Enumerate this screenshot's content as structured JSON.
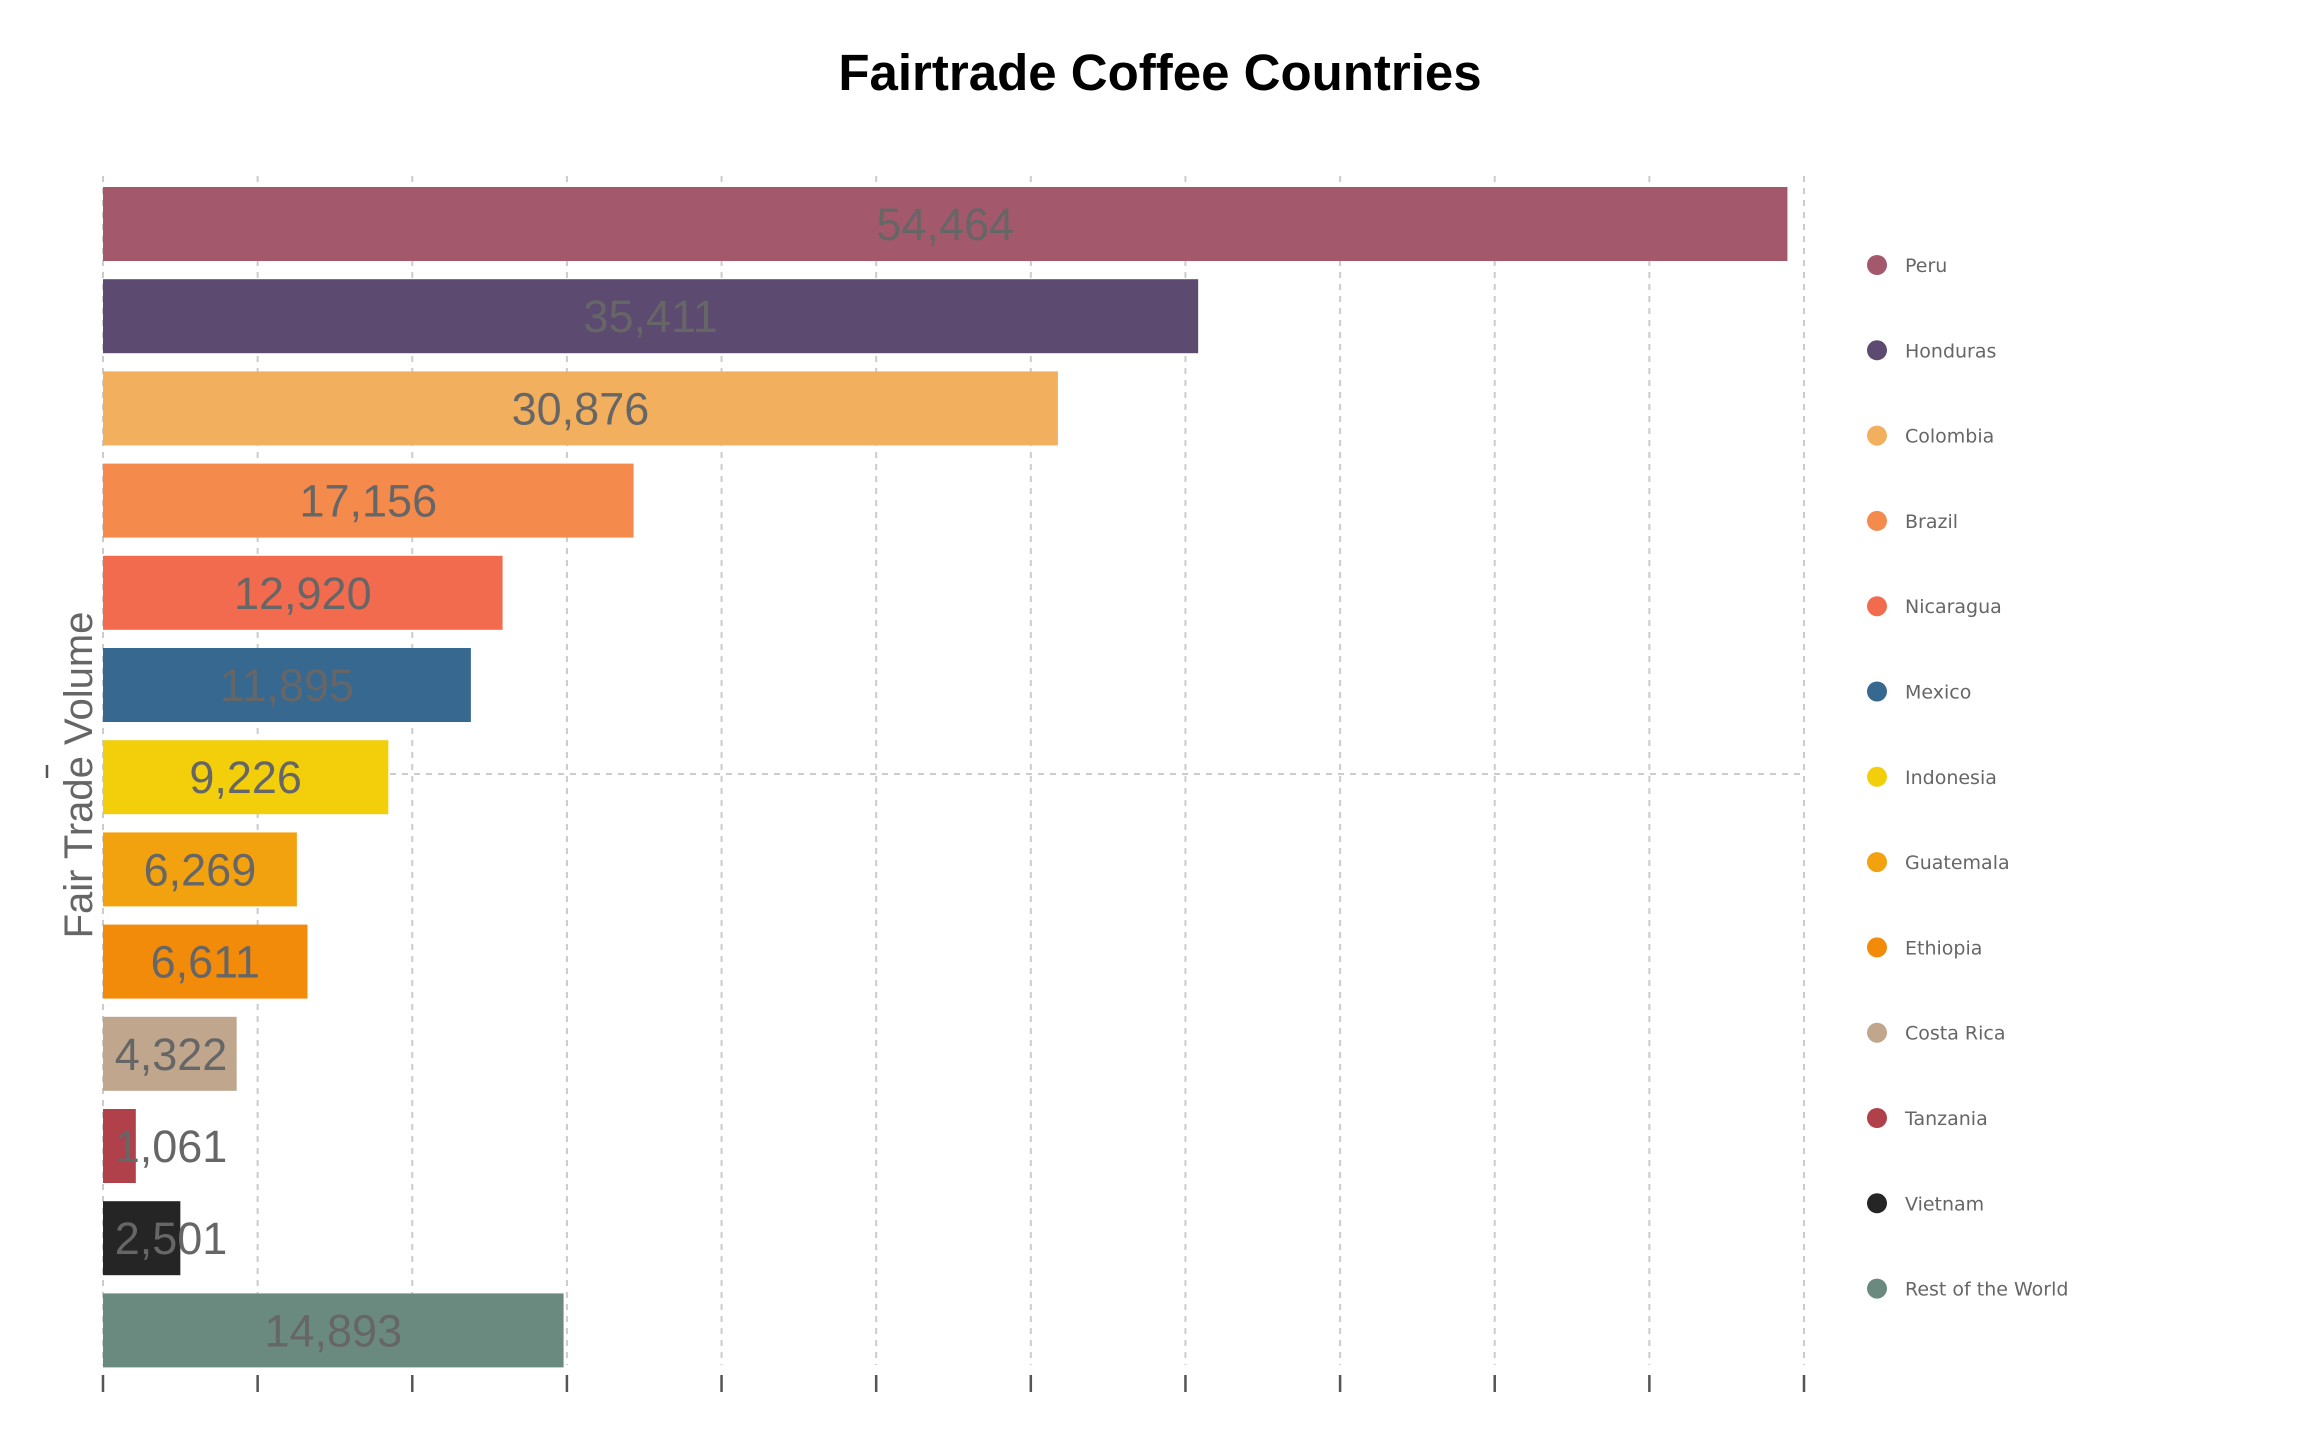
{
  "chart_data": {
    "type": "bar",
    "orientation": "horizontal",
    "title": "Fairtrade Coffee Countries",
    "ylabel": "Fair Trade Volume",
    "xlabel": "",
    "xlim": [
      0,
      55000
    ],
    "grid": true,
    "legend_position": "right",
    "categories": [
      "Peru",
      "Honduras",
      "Colombia",
      "Brazil",
      "Nicaragua",
      "Mexico",
      "Indonesia",
      "Guatemala",
      "Ethiopia",
      "Costa Rica",
      "Tanzania",
      "Vietnam",
      "Rest of the World"
    ],
    "values": [
      54464,
      35411,
      30876,
      17156,
      12920,
      11895,
      9226,
      6269,
      6611,
      4322,
      1061,
      2501,
      14893
    ],
    "value_labels": [
      "54,464",
      "35,411",
      "30,876",
      "17,156",
      "12,920",
      "11,895",
      "9,226",
      "6,269",
      "6,611",
      "4,322",
      "1,061",
      "2,501",
      "14,893"
    ],
    "colors": [
      "#a3596b",
      "#5c4a70",
      "#f2b05e",
      "#f48a4c",
      "#f26b4f",
      "#376890",
      "#f2cf0a",
      "#f2a20f",
      "#f28a0a",
      "#bfa68c",
      "#b0404a",
      "#252525",
      "#6b8a7f"
    ]
  }
}
